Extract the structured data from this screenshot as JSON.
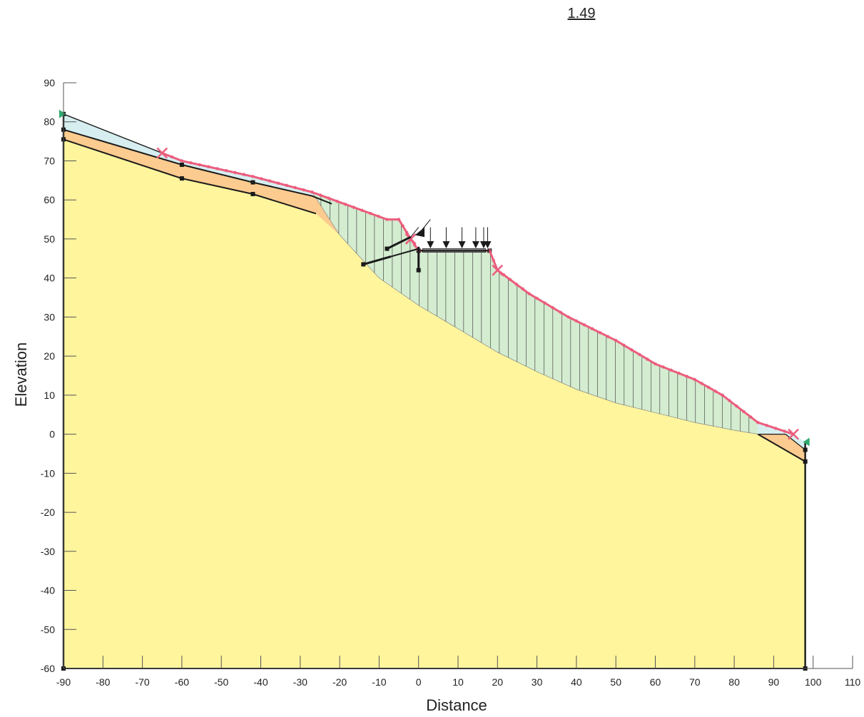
{
  "factor_of_safety": "1.49",
  "axes": {
    "xlabel": "Distance",
    "ylabel": "Elevation",
    "xlim": [
      -90,
      110
    ],
    "ylim": [
      -60,
      90
    ],
    "xticks": [
      "-90",
      "-80",
      "-70",
      "-60",
      "-50",
      "-40",
      "-30",
      "-20",
      "-10",
      "0",
      "10",
      "20",
      "30",
      "40",
      "50",
      "60",
      "70",
      "80",
      "90",
      "100",
      "110"
    ],
    "yticks": [
      "90",
      "80",
      "70",
      "60",
      "50",
      "40",
      "30",
      "20",
      "10",
      "0",
      "-10",
      "-20",
      "-30",
      "-40",
      "-50",
      "-60"
    ]
  },
  "colors": {
    "bedrock": "#fff59d",
    "weathered_layer": "#fccb8f",
    "topsoil": "#d6eef0",
    "sliding_mass": "#d4ecd0",
    "critical_surface": "#ec5d7d",
    "boundary": "#1a1a1a",
    "entry_exit_marker": "#2eaa6e"
  },
  "chart_data": {
    "type": "slope-stability-section",
    "factor_of_safety": 1.49,
    "ground_surface": [
      [
        -90,
        82
      ],
      [
        -60,
        70
      ],
      [
        -42,
        66
      ],
      [
        -27,
        62
      ],
      [
        -8,
        55
      ],
      [
        -5,
        55
      ],
      [
        -2,
        50
      ],
      [
        0,
        47
      ],
      [
        18,
        47
      ],
      [
        20,
        42
      ],
      [
        28,
        36
      ],
      [
        38,
        30
      ],
      [
        50,
        24
      ],
      [
        60,
        18
      ],
      [
        70,
        14
      ],
      [
        77,
        10
      ],
      [
        86,
        3
      ],
      [
        95,
        0
      ],
      [
        98,
        -2
      ]
    ],
    "layer_boundaries": [
      {
        "name": "topsoil-base",
        "points": [
          [
            -90,
            78
          ],
          [
            -60,
            69
          ],
          [
            -42,
            64.5
          ],
          [
            -27,
            61
          ],
          [
            -22,
            59
          ]
        ]
      },
      {
        "name": "bedrock-top",
        "points": [
          [
            -90,
            75.5
          ],
          [
            -60,
            65.5
          ],
          [
            -42,
            61.5
          ],
          [
            -26,
            56.5
          ],
          [
            -20,
            51
          ],
          [
            -10,
            40
          ],
          [
            0,
            33
          ],
          [
            10,
            27
          ],
          [
            20,
            21
          ],
          [
            30,
            16
          ],
          [
            40,
            11.5
          ],
          [
            50,
            8
          ],
          [
            60,
            5.5
          ],
          [
            70,
            3
          ],
          [
            80,
            1
          ],
          [
            86,
            0
          ],
          [
            98,
            -7
          ]
        ]
      },
      {
        "name": "lower-toe-boundary",
        "points": [
          [
            86,
            0
          ],
          [
            93,
            0
          ],
          [
            98,
            -4
          ]
        ]
      }
    ],
    "critical_slip_surface": {
      "entry": [
        -65,
        72
      ],
      "exit": [
        95,
        0
      ],
      "base": [
        [
          -27,
          62
        ],
        [
          -20,
          51
        ],
        [
          -10,
          40
        ],
        [
          0,
          33
        ],
        [
          10,
          27
        ],
        [
          20,
          21
        ],
        [
          30,
          16
        ],
        [
          40,
          11.5
        ],
        [
          50,
          8
        ],
        [
          60,
          5.5
        ],
        [
          70,
          3
        ],
        [
          80,
          1
        ],
        [
          86,
          0
        ]
      ]
    },
    "anchors": [
      {
        "from": [
          -14,
          43.5
        ],
        "to": [
          -7,
          45.5
        ]
      },
      {
        "from": [
          -8,
          47.5
        ],
        "to": [
          -2,
          50.5
        ]
      }
    ],
    "wall": {
      "x": 0,
      "y_top": 48,
      "y_bottom": 42
    },
    "point_loads_x": [
      3,
      7,
      11,
      14.5,
      16.5,
      17.5
    ],
    "slice_count": 50
  }
}
